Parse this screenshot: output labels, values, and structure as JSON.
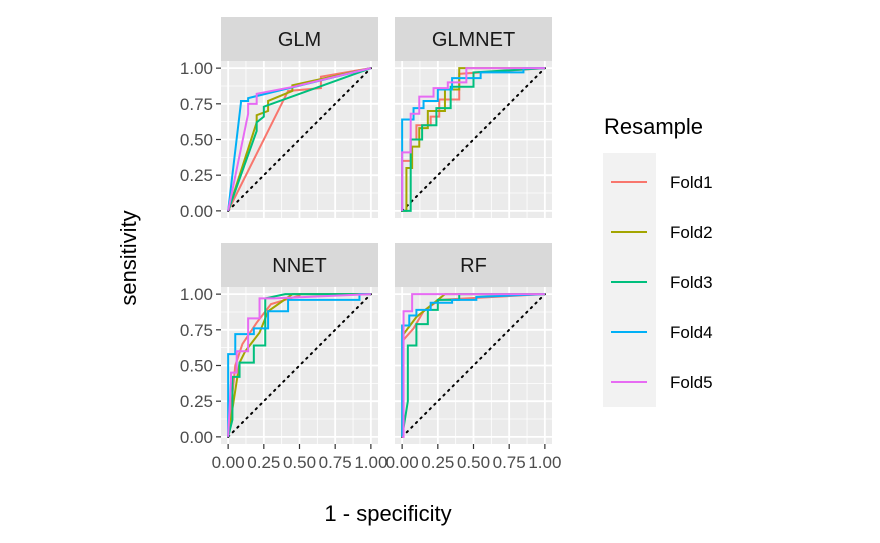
{
  "chart_data": {
    "type": "line",
    "xlabel": "1 - specificity",
    "ylabel": "sensitivity",
    "xlim": [
      0,
      1
    ],
    "ylim": [
      0,
      1
    ],
    "grid": true,
    "facet_layout": "2x2",
    "x_ticks": [
      "0.00",
      "0.25",
      "0.50",
      "0.75",
      "1.00"
    ],
    "y_ticks": [
      "0.00",
      "0.25",
      "0.50",
      "0.75",
      "1.00"
    ],
    "reference_line": {
      "style": "dotted",
      "from": [
        0,
        0
      ],
      "to": [
        1,
        1
      ]
    },
    "legend": {
      "title": "Resample",
      "placement": "right",
      "entries": [
        "Fold1",
        "Fold2",
        "Fold3",
        "Fold4",
        "Fold5"
      ]
    },
    "series_colors": {
      "Fold1": "#F8766D",
      "Fold2": "#A3A500",
      "Fold3": "#00BF7D",
      "Fold4": "#00B0F6",
      "Fold5": "#E76BF3"
    },
    "panels": [
      {
        "title": "GLM",
        "series": [
          {
            "name": "Fold1",
            "x": [
              0,
              0.42,
              0.65,
              0.65,
              1
            ],
            "y": [
              0,
              0.84,
              0.86,
              0.94,
              1
            ]
          },
          {
            "name": "Fold2",
            "x": [
              0,
              0.2,
              0.2,
              0.28,
              0.28,
              0.45,
              0.45,
              1
            ],
            "y": [
              0,
              0.62,
              0.67,
              0.7,
              0.77,
              0.84,
              0.88,
              1
            ]
          },
          {
            "name": "Fold3",
            "x": [
              0,
              0.2,
              0.2,
              0.25,
              0.25,
              1
            ],
            "y": [
              0,
              0.56,
              0.62,
              0.66,
              0.73,
              1
            ]
          },
          {
            "name": "Fold4",
            "x": [
              0,
              0.09,
              0.09,
              0.14,
              0.14,
              1
            ],
            "y": [
              0,
              0.76,
              0.77,
              0.77,
              0.79,
              1
            ]
          },
          {
            "name": "Fold5",
            "x": [
              0,
              0.14,
              0.14,
              0.2,
              0.2,
              0.46,
              1
            ],
            "y": [
              0,
              0.68,
              0.75,
              0.75,
              0.82,
              0.87,
              1
            ]
          }
        ]
      },
      {
        "title": "GLMNET",
        "series": [
          {
            "name": "Fold1",
            "x": [
              0,
              0,
              0.06,
              0.06,
              0.1,
              0.1,
              0.2,
              0.2,
              0.26,
              0.26,
              0.4,
              0.4,
              1
            ],
            "y": [
              0,
              0.35,
              0.35,
              0.5,
              0.5,
              0.6,
              0.6,
              0.66,
              0.66,
              0.78,
              0.78,
              0.96,
              1
            ]
          },
          {
            "name": "Fold2",
            "x": [
              0,
              0.03,
              0.03,
              0.07,
              0.07,
              0.12,
              0.12,
              0.18,
              0.18,
              0.3,
              0.3,
              0.4,
              0.4,
              1
            ],
            "y": [
              0,
              0,
              0.3,
              0.3,
              0.45,
              0.45,
              0.58,
              0.58,
              0.7,
              0.7,
              0.85,
              0.85,
              1,
              1
            ]
          },
          {
            "name": "Fold3",
            "x": [
              0,
              0.06,
              0.06,
              0.14,
              0.14,
              0.24,
              0.24,
              0.34,
              0.34,
              0.5,
              0.5,
              1
            ],
            "y": [
              0,
              0,
              0.5,
              0.5,
              0.6,
              0.6,
              0.72,
              0.72,
              0.87,
              0.87,
              0.97,
              1
            ]
          },
          {
            "name": "Fold4",
            "x": [
              0,
              0,
              0.08,
              0.08,
              0.15,
              0.15,
              0.25,
              0.25,
              0.35,
              0.35,
              0.55,
              0.55,
              0.85,
              0.85,
              1
            ],
            "y": [
              0,
              0.64,
              0.64,
              0.72,
              0.72,
              0.77,
              0.77,
              0.85,
              0.85,
              0.93,
              0.93,
              0.97,
              0.97,
              1,
              1
            ]
          },
          {
            "name": "Fold5",
            "x": [
              0,
              0,
              0.06,
              0.06,
              0.12,
              0.12,
              0.22,
              0.22,
              0.32,
              0.32,
              0.45,
              0.45,
              1
            ],
            "y": [
              0,
              0.41,
              0.41,
              0.68,
              0.68,
              0.8,
              0.8,
              0.86,
              0.86,
              0.9,
              0.9,
              1,
              1
            ]
          }
        ]
      },
      {
        "title": "NNET",
        "series": [
          {
            "name": "Fold1",
            "x": [
              0,
              0.05,
              0.05,
              0.1,
              0.1,
              0.2,
              0.2,
              0.3,
              0.3,
              0.5,
              0.5,
              1
            ],
            "y": [
              0,
              0.5,
              0.5,
              0.65,
              0.65,
              0.8,
              0.8,
              0.93,
              0.93,
              0.99,
              1,
              1
            ]
          },
          {
            "name": "Fold2",
            "x": [
              0,
              0.08,
              0.08,
              0.12,
              0.12,
              0.22,
              0.22,
              0.28,
              0.28,
              0.45,
              0.45,
              1
            ],
            "y": [
              0,
              0.52,
              0.52,
              0.6,
              0.6,
              0.73,
              0.73,
              0.88,
              0.88,
              1,
              1,
              1
            ]
          },
          {
            "name": "Fold3",
            "x": [
              0,
              0.03,
              0.03,
              0.08,
              0.08,
              0.18,
              0.18,
              0.26,
              0.26,
              0.4,
              1
            ],
            "y": [
              0,
              0.12,
              0.42,
              0.42,
              0.52,
              0.52,
              0.64,
              0.64,
              0.97,
              1,
              1
            ]
          },
          {
            "name": "Fold4",
            "x": [
              0,
              0,
              0.05,
              0.05,
              0.18,
              0.18,
              0.28,
              0.28,
              0.42,
              0.42,
              0.6,
              0.6,
              0.92,
              0.92,
              1
            ],
            "y": [
              0,
              0.58,
              0.58,
              0.72,
              0.72,
              0.76,
              0.76,
              0.88,
              0.88,
              0.96,
              0.96,
              0.96,
              0.96,
              1,
              1
            ]
          },
          {
            "name": "Fold5",
            "x": [
              0,
              0.02,
              0.02,
              0.06,
              0.06,
              0.14,
              0.14,
              0.22,
              0.22,
              0.32,
              1
            ],
            "y": [
              0,
              0.4,
              0.45,
              0.45,
              0.6,
              0.6,
              0.83,
              0.83,
              0.97,
              0.97,
              1
            ]
          }
        ]
      },
      {
        "title": "RF",
        "series": [
          {
            "name": "Fold1",
            "x": [
              0,
              0.01,
              0.01,
              0.08,
              0.08,
              0.15,
              0.15,
              0.26,
              0.26,
              1
            ],
            "y": [
              0,
              0.68,
              0.68,
              0.76,
              0.76,
              0.88,
              0.88,
              0.96,
              0.96,
              1
            ]
          },
          {
            "name": "Fold2",
            "x": [
              0,
              0.01,
              0.01,
              0.1,
              0.1,
              0.2,
              0.2,
              0.3,
              0.3,
              1
            ],
            "y": [
              0,
              0.72,
              0.72,
              0.84,
              0.84,
              0.92,
              0.92,
              1,
              1,
              1
            ]
          },
          {
            "name": "Fold3",
            "x": [
              0,
              0.04,
              0.04,
              0.1,
              0.1,
              0.18,
              0.18,
              0.25,
              0.25,
              0.4,
              0.4,
              1
            ],
            "y": [
              0,
              0.25,
              0.64,
              0.64,
              0.79,
              0.79,
              0.89,
              0.89,
              0.96,
              0.96,
              1,
              1
            ]
          },
          {
            "name": "Fold4",
            "x": [
              0,
              0,
              0.05,
              0.05,
              0.1,
              0.1,
              0.2,
              0.2,
              0.35,
              0.35,
              0.52,
              0.52,
              1
            ],
            "y": [
              0,
              0.78,
              0.78,
              0.85,
              0.85,
              0.89,
              0.89,
              0.94,
              0.94,
              0.96,
              0.96,
              0.98,
              1
            ]
          },
          {
            "name": "Fold5",
            "x": [
              0,
              0.01,
              0.01,
              0.07,
              0.07,
              1
            ],
            "y": [
              0,
              0,
              0.88,
              0.88,
              1,
              1
            ]
          }
        ]
      }
    ]
  }
}
